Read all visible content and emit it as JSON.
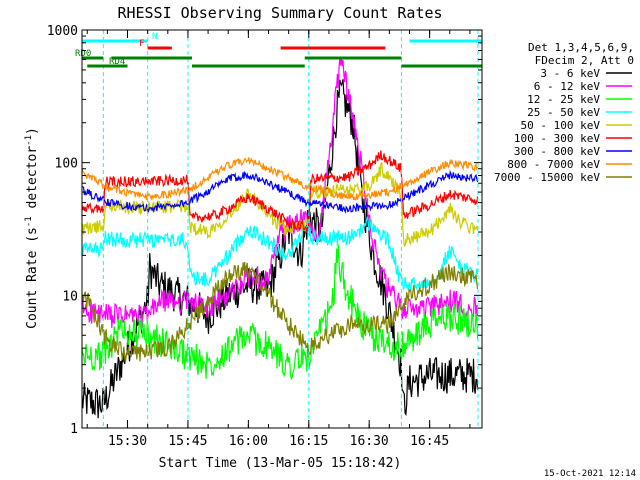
{
  "chart_data": {
    "type": "line",
    "title": "RHESSI Observing Summary Count Rates",
    "xlabel": "Start Time (13-Mar-05 15:18:42)",
    "ylabel": "Count Rate (s",
    "ylabel_sup": "-1",
    "ylabel_tail": " detector",
    "ylabel_tail_sup": "-1",
    "ylabel_close": ")",
    "yscale": "log",
    "xlim": [
      "15:18:42",
      "16:58:00"
    ],
    "ylim": [
      1,
      1000
    ],
    "x_ticks": [
      "15:30",
      "15:45",
      "16:00",
      "16:15",
      "16:30",
      "16:45"
    ],
    "y_ticks": [
      "1",
      "10",
      "100",
      "1000"
    ],
    "footer_timestamp": "15-Oct-2021 12:14",
    "legend": {
      "header": [
        "Det 1,3,4,5,6,9,",
        "FDecim 2, Att 0"
      ],
      "entries": [
        {
          "label": "3 - 6 keV",
          "color": "#000000"
        },
        {
          "label": "6 - 12 keV",
          "color": "#ff00ff"
        },
        {
          "label": "12 - 25 keV",
          "color": "#00ff00"
        },
        {
          "label": "25 - 50 keV",
          "color": "#00ffff"
        },
        {
          "label": "50 - 100 keV",
          "color": "#cccc00"
        },
        {
          "label": "100 - 300 keV",
          "color": "#ff0000"
        },
        {
          "label": "300 - 800 keV",
          "color": "#0000ff"
        },
        {
          "label": "800 - 7000 keV",
          "color": "#ff8c00"
        },
        {
          "label": "7000 - 15000 keV",
          "color": "#808000"
        }
      ]
    },
    "flags": [
      {
        "label": "N",
        "color": "#00ffff",
        "segments": [
          [
            "15:18:42",
            "15:35:00"
          ],
          [
            "16:40:00",
            "16:58:00"
          ]
        ]
      },
      {
        "label": "F",
        "color": "#ff0000",
        "segments": [
          [
            "15:35:00",
            "15:41:00"
          ],
          [
            "16:08:00",
            "16:34:00"
          ]
        ]
      },
      {
        "label": "RD0",
        "color": "#008000",
        "segments": [
          [
            "15:18:42",
            "15:24:00"
          ],
          [
            "15:26:00",
            "15:46:00"
          ],
          [
            "16:14:00",
            "16:38:00"
          ]
        ]
      },
      {
        "label": "RD4",
        "color": "#008000",
        "segments": [
          [
            "15:20:00",
            "15:30:00"
          ],
          [
            "15:46:00",
            "16:14:00"
          ],
          [
            "16:38:00",
            "16:58:00"
          ]
        ]
      }
    ],
    "vlines_cyan": [
      "15:24:00",
      "15:35:00",
      "15:45:00",
      "16:15:00",
      "16:38:00",
      "16:57:00"
    ],
    "series": [
      {
        "name": "3 - 6 keV",
        "color": "#000000",
        "noise": 0.14,
        "points": [
          [
            "15:18:42",
            1.6
          ],
          [
            "15:24:00",
            1.5
          ],
          [
            "15:35:00",
            9
          ],
          [
            "15:35:30",
            16
          ],
          [
            "15:38:00",
            12
          ],
          [
            "15:45:00",
            9
          ],
          [
            "15:50:00",
            7
          ],
          [
            "15:55:00",
            10
          ],
          [
            "16:00:00",
            12
          ],
          [
            "16:05:00",
            11
          ],
          [
            "16:10:00",
            30
          ],
          [
            "16:13:00",
            20
          ],
          [
            "16:15:00",
            40
          ],
          [
            "16:18:00",
            30
          ],
          [
            "16:20:00",
            80
          ],
          [
            "16:22:00",
            250
          ],
          [
            "16:23:00",
            340
          ],
          [
            "16:26:00",
            200
          ],
          [
            "16:28:00",
            60
          ],
          [
            "16:31:00",
            20
          ],
          [
            "16:34:00",
            10
          ],
          [
            "16:38:00",
            3
          ],
          [
            "16:38:30",
            1.4
          ],
          [
            "16:40:00",
            2.2
          ],
          [
            "16:45:00",
            2.5
          ],
          [
            "16:50:00",
            2.5
          ],
          [
            "16:57:00",
            2.5
          ]
        ]
      },
      {
        "name": "6 - 12 keV",
        "color": "#ff00ff",
        "noise": 0.09,
        "points": [
          [
            "15:18:42",
            8
          ],
          [
            "15:24:00",
            7
          ],
          [
            "15:35:00",
            7
          ],
          [
            "15:38:00",
            9
          ],
          [
            "15:45:00",
            9
          ],
          [
            "15:50:00",
            8
          ],
          [
            "15:55:00",
            10
          ],
          [
            "16:00:00",
            14
          ],
          [
            "16:05:00",
            13
          ],
          [
            "16:08:00",
            30
          ],
          [
            "16:12:00",
            35
          ],
          [
            "16:14:00",
            38
          ],
          [
            "16:17:00",
            25
          ],
          [
            "16:19:00",
            60
          ],
          [
            "16:21:00",
            200
          ],
          [
            "16:23:00",
            680
          ],
          [
            "16:25:00",
            300
          ],
          [
            "16:28:00",
            100
          ],
          [
            "16:31:00",
            25
          ],
          [
            "16:34:00",
            12
          ],
          [
            "16:38:00",
            8
          ],
          [
            "16:45:00",
            8
          ],
          [
            "16:50:00",
            9
          ],
          [
            "16:57:00",
            8
          ]
        ]
      },
      {
        "name": "12 - 25 keV",
        "color": "#00ff00",
        "noise": 0.12,
        "points": [
          [
            "15:18:42",
            3.5
          ],
          [
            "15:24:00",
            3.5
          ],
          [
            "15:28:00",
            5.5
          ],
          [
            "15:35:00",
            5
          ],
          [
            "15:45:00",
            3.5
          ],
          [
            "15:50:00",
            3
          ],
          [
            "15:55:00",
            4
          ],
          [
            "16:00:00",
            5
          ],
          [
            "16:05:00",
            4
          ],
          [
            "16:10:00",
            3
          ],
          [
            "16:15:00",
            3.5
          ],
          [
            "16:19:00",
            6
          ],
          [
            "16:21:00",
            9
          ],
          [
            "16:22:00",
            20
          ],
          [
            "16:24:00",
            12
          ],
          [
            "16:27:00",
            7
          ],
          [
            "16:30:00",
            5
          ],
          [
            "16:38:00",
            4
          ],
          [
            "16:45:00",
            6
          ],
          [
            "16:50:00",
            7
          ],
          [
            "16:57:00",
            6
          ]
        ]
      },
      {
        "name": "25 - 50 keV",
        "color": "#00ffff",
        "noise": 0.06,
        "points": [
          [
            "15:18:42",
            22
          ],
          [
            "15:24:00",
            22
          ],
          [
            "15:24:30",
            27
          ],
          [
            "15:30:00",
            26
          ],
          [
            "15:35:00",
            26
          ],
          [
            "15:40:00",
            26
          ],
          [
            "15:45:00",
            26
          ],
          [
            "15:45:30",
            14
          ],
          [
            "15:50:00",
            13
          ],
          [
            "15:55:00",
            20
          ],
          [
            "16:00:00",
            32
          ],
          [
            "16:05:00",
            25
          ],
          [
            "16:10:00",
            20
          ],
          [
            "16:15:00",
            35
          ],
          [
            "16:15:30",
            27
          ],
          [
            "16:20:00",
            27
          ],
          [
            "16:25:00",
            27
          ],
          [
            "16:30:00",
            35
          ],
          [
            "16:35:00",
            25
          ],
          [
            "16:38:00",
            12
          ],
          [
            "16:42:00",
            12
          ],
          [
            "16:47:00",
            14
          ],
          [
            "16:50:00",
            22
          ],
          [
            "16:53:00",
            16
          ],
          [
            "16:57:00",
            14
          ]
        ]
      },
      {
        "name": "50 - 100 keV",
        "color": "#cccc00",
        "noise": 0.05,
        "points": [
          [
            "15:18:42",
            32
          ],
          [
            "15:24:00",
            33
          ],
          [
            "15:24:30",
            48
          ],
          [
            "15:30:00",
            46
          ],
          [
            "15:35:00",
            46
          ],
          [
            "15:45:00",
            47
          ],
          [
            "15:45:30",
            33
          ],
          [
            "15:50:00",
            30
          ],
          [
            "15:55:00",
            40
          ],
          [
            "16:00:00",
            60
          ],
          [
            "16:05:00",
            40
          ],
          [
            "16:10:00",
            30
          ],
          [
            "16:15:00",
            36
          ],
          [
            "16:15:30",
            60
          ],
          [
            "16:25:00",
            62
          ],
          [
            "16:30:00",
            65
          ],
          [
            "16:33:00",
            90
          ],
          [
            "16:38:00",
            60
          ],
          [
            "16:38:30",
            26
          ],
          [
            "16:45:00",
            30
          ],
          [
            "16:50:00",
            45
          ],
          [
            "16:53:00",
            35
          ],
          [
            "16:57:00",
            30
          ]
        ]
      },
      {
        "name": "100 - 300 keV",
        "color": "#ff0000",
        "noise": 0.04,
        "points": [
          [
            "15:18:42",
            45
          ],
          [
            "15:24:00",
            45
          ],
          [
            "15:24:30",
            72
          ],
          [
            "15:35:00",
            72
          ],
          [
            "15:45:00",
            74
          ],
          [
            "15:45:30",
            38
          ],
          [
            "15:52:00",
            40
          ],
          [
            "16:00:00",
            55
          ],
          [
            "16:05:00",
            45
          ],
          [
            "16:10:00",
            35
          ],
          [
            "16:15:00",
            32
          ],
          [
            "16:15:30",
            75
          ],
          [
            "16:25:00",
            78
          ],
          [
            "16:30:00",
            95
          ],
          [
            "16:33:00",
            115
          ],
          [
            "16:38:00",
            90
          ],
          [
            "16:38:30",
            40
          ],
          [
            "16:45:00",
            48
          ],
          [
            "16:50:00",
            58
          ],
          [
            "16:57:00",
            52
          ]
        ]
      },
      {
        "name": "300 - 800 keV",
        "color": "#0000ff",
        "noise": 0.03,
        "points": [
          [
            "15:18:42",
            62
          ],
          [
            "15:25:00",
            50
          ],
          [
            "15:35:00",
            45
          ],
          [
            "15:45:00",
            50
          ],
          [
            "15:55:00",
            75
          ],
          [
            "16:00:00",
            82
          ],
          [
            "16:05:00",
            70
          ],
          [
            "16:15:00",
            50
          ],
          [
            "16:25:00",
            45
          ],
          [
            "16:35:00",
            48
          ],
          [
            "16:45:00",
            68
          ],
          [
            "16:50:00",
            80
          ],
          [
            "16:57:00",
            75
          ]
        ]
      },
      {
        "name": "800 - 7000 keV",
        "color": "#ff8c00",
        "noise": 0.03,
        "points": [
          [
            "15:18:42",
            85
          ],
          [
            "15:25:00",
            65
          ],
          [
            "15:35:00",
            55
          ],
          [
            "15:45:00",
            62
          ],
          [
            "15:55:00",
            95
          ],
          [
            "16:00:00",
            105
          ],
          [
            "16:05:00",
            90
          ],
          [
            "16:15:00",
            65
          ],
          [
            "16:25:00",
            55
          ],
          [
            "16:35:00",
            60
          ],
          [
            "16:45:00",
            85
          ],
          [
            "16:50:00",
            100
          ],
          [
            "16:57:00",
            92
          ]
        ]
      },
      {
        "name": "7000 - 15000 keV",
        "color": "#808000",
        "noise": 0.07,
        "points": [
          [
            "15:18:42",
            11
          ],
          [
            "15:25:00",
            4.5
          ],
          [
            "15:30:00",
            3.5
          ],
          [
            "15:40:00",
            4
          ],
          [
            "15:45:00",
            6
          ],
          [
            "15:55:00",
            14
          ],
          [
            "16:00:00",
            16
          ],
          [
            "16:05:00",
            10
          ],
          [
            "16:10:00",
            6
          ],
          [
            "16:15:00",
            4
          ],
          [
            "16:20:00",
            5
          ],
          [
            "16:25:00",
            6
          ],
          [
            "16:35:00",
            6
          ],
          [
            "16:40:00",
            10
          ],
          [
            "16:45:00",
            12
          ],
          [
            "16:50:00",
            15
          ],
          [
            "16:57:00",
            13
          ]
        ]
      }
    ]
  }
}
